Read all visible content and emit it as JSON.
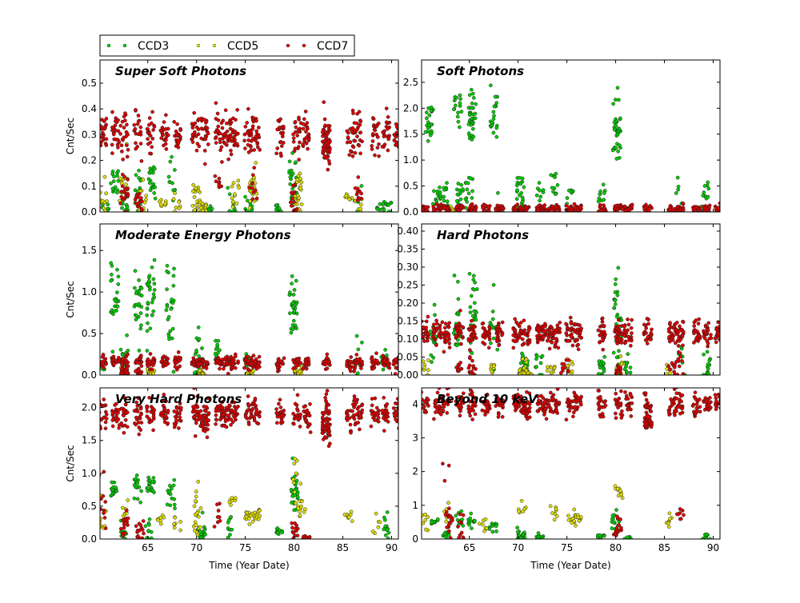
{
  "chart_data": {
    "type": "scatter",
    "legend": {
      "placement": "top-left, above plots",
      "entries": [
        "CCD3",
        "CCD5",
        "CCD7"
      ]
    },
    "colors": {
      "CCD3": "#00cc00",
      "CCD5": "#dddd00",
      "CCD7": "#dd0000"
    },
    "xlabel": "Time (Year Date)",
    "ylabel": "Cnt/Sec",
    "xlim": [
      60.1,
      90.7
    ],
    "xticks": [
      "65",
      "70",
      "75",
      "80",
      "85",
      "90"
    ],
    "xtick_values": [
      65,
      70,
      75,
      80,
      85,
      90
    ],
    "columns": [
      60.4,
      61.7,
      62.6,
      64.0,
      65.3,
      66.7,
      68.1,
      69.9,
      70.8,
      72.3,
      73.1,
      73.9,
      75.3,
      76.1,
      78.6,
      80.3,
      81.3,
      83.3,
      85.8,
      86.6,
      88.3,
      89.4,
      90.6
    ],
    "panels": [
      {
        "title": "Super Soft Photons",
        "ylim": [
          0,
          0.59
        ],
        "yticks": [
          "0.0",
          "0.1",
          "0.2",
          "0.3",
          "0.4",
          "0.5"
        ],
        "ytick_values": [
          0,
          0.1,
          0.2,
          0.3,
          0.4,
          0.5
        ],
        "CCD7_base": [
          0.3,
          0.04,
          22
        ],
        "CCD7_extra": [
          [
            83.3,
            0.25,
            0.03,
            45
          ],
          [
            62.6,
            0.07,
            0.04,
            20
          ],
          [
            64.0,
            0.04,
            0.03,
            15
          ],
          [
            72.2,
            0.12,
            0.02,
            8
          ],
          [
            75.8,
            0.1,
            0.03,
            10
          ],
          [
            80.0,
            0.04,
            0.03,
            15
          ],
          [
            86.6,
            0.08,
            0.03,
            10
          ]
        ],
        "CCD3": [
          [
            60.6,
            0.02,
            0.02,
            8
          ],
          [
            61.6,
            0.12,
            0.03,
            15
          ],
          [
            62.6,
            0.03,
            0.03,
            15
          ],
          [
            64.1,
            0.1,
            0.04,
            15
          ],
          [
            65.4,
            0.12,
            0.03,
            20
          ],
          [
            67.4,
            0.12,
            0.05,
            10
          ],
          [
            71.2,
            0.01,
            0.01,
            15
          ],
          [
            73.6,
            0.03,
            0.03,
            8
          ],
          [
            75.3,
            0.02,
            0.02,
            10
          ],
          [
            78.5,
            0.01,
            0.01,
            10
          ],
          [
            79.9,
            0.12,
            0.05,
            25
          ],
          [
            86.6,
            0.05,
            0.03,
            8
          ],
          [
            88.9,
            0.02,
            0.01,
            10
          ],
          [
            89.6,
            0.02,
            0.02,
            10
          ]
        ],
        "CCD5": [
          [
            60.4,
            0.05,
            0.04,
            12
          ],
          [
            62.5,
            0.12,
            0.05,
            12
          ],
          [
            64.5,
            0.05,
            0.04,
            10
          ],
          [
            66.5,
            0.04,
            0.01,
            8
          ],
          [
            68.0,
            0.02,
            0.02,
            8
          ],
          [
            70.0,
            0.06,
            0.04,
            20
          ],
          [
            70.8,
            0.01,
            0.01,
            20
          ],
          [
            74.0,
            0.07,
            0.04,
            12
          ],
          [
            75.8,
            0.08,
            0.04,
            20
          ],
          [
            80.4,
            0.08,
            0.04,
            25
          ],
          [
            85.6,
            0.06,
            0.01,
            8
          ],
          [
            86.6,
            0.02,
            0.02,
            8
          ]
        ]
      },
      {
        "title": "Soft Photons",
        "ylim": [
          0,
          2.93
        ],
        "yticks": [
          "0.0",
          "0.5",
          "1.0",
          "1.5",
          "2.0",
          "2.5"
        ],
        "ytick_values": [
          0,
          0.5,
          1,
          1.5,
          2,
          2.5
        ],
        "CCD7_base": [
          0.06,
          0.04,
          18
        ],
        "CCD7_extra": [],
        "CCD3": [
          [
            60.9,
            1.75,
            0.2,
            25
          ],
          [
            61.6,
            0.3,
            0.15,
            10
          ],
          [
            62.4,
            0.2,
            0.2,
            15
          ],
          [
            63.8,
            1.9,
            0.2,
            15
          ],
          [
            64.0,
            0.25,
            0.2,
            15
          ],
          [
            65.3,
            1.8,
            0.25,
            35
          ],
          [
            65.0,
            0.35,
            0.25,
            15
          ],
          [
            67.5,
            1.8,
            0.3,
            20
          ],
          [
            68.1,
            0.3,
            0.2,
            6
          ],
          [
            70.2,
            0.3,
            0.25,
            25
          ],
          [
            72.2,
            0.4,
            0.1,
            8
          ],
          [
            73.7,
            0.45,
            0.15,
            10
          ],
          [
            75.3,
            0.2,
            0.2,
            8
          ],
          [
            78.6,
            0.3,
            0.1,
            10
          ],
          [
            80.1,
            1.6,
            0.35,
            35
          ],
          [
            86.4,
            0.5,
            0.15,
            5
          ],
          [
            89.2,
            0.25,
            0.15,
            15
          ]
        ],
        "CCD5": [
          [
            63.0,
            0.05,
            0.03,
            10
          ],
          [
            70.5,
            0.05,
            0.03,
            10
          ],
          [
            75.5,
            0.05,
            0.03,
            10
          ]
        ]
      },
      {
        "title": "Moderate Energy Photons",
        "ylim": [
          0,
          1.82
        ],
        "yticks": [
          "0.0",
          "0.5",
          "1.0",
          "1.5"
        ],
        "ytick_values": [
          0,
          0.5,
          1,
          1.5
        ],
        "CCD7_base": [
          0.15,
          0.04,
          20
        ],
        "CCD7_extra": [
          [
            62.6,
            0.05,
            0.05,
            15
          ],
          [
            64.1,
            0.03,
            0.03,
            10
          ]
        ],
        "CCD3": [
          [
            60.4,
            0.1,
            0.05,
            8
          ],
          [
            61.6,
            0.9,
            0.25,
            25
          ],
          [
            62.6,
            0.15,
            0.15,
            15
          ],
          [
            64.0,
            0.8,
            0.25,
            25
          ],
          [
            65.3,
            0.9,
            0.25,
            30
          ],
          [
            67.3,
            0.85,
            0.35,
            25
          ],
          [
            70.2,
            0.2,
            0.15,
            20
          ],
          [
            72.3,
            0.3,
            0.15,
            12
          ],
          [
            75.3,
            0.1,
            0.1,
            8
          ],
          [
            79.9,
            0.8,
            0.2,
            30
          ],
          [
            86.6,
            0.2,
            0.15,
            8
          ],
          [
            89.3,
            0.15,
            0.1,
            10
          ]
        ],
        "CCD5": [
          [
            62.6,
            0.05,
            0.05,
            10
          ],
          [
            65.3,
            0.03,
            0.03,
            10
          ],
          [
            70.5,
            0.02,
            0.02,
            15
          ],
          [
            75.5,
            0.03,
            0.03,
            10
          ],
          [
            80.4,
            0.05,
            0.04,
            15
          ]
        ]
      },
      {
        "title": "Hard Photons",
        "ylim": [
          0,
          0.42
        ],
        "yticks": [
          "0.00",
          "0.05",
          "0.10",
          "0.15",
          "0.20",
          "0.25",
          "0.30",
          "0.35",
          "0.40"
        ],
        "ytick_values": [
          0,
          0.05,
          0.1,
          0.15,
          0.2,
          0.25,
          0.3,
          0.35,
          0.4
        ],
        "CCD7_base": [
          0.115,
          0.018,
          25
        ],
        "CCD7_extra": [
          [
            64.0,
            0.02,
            0.01,
            10
          ],
          [
            65.3,
            0.03,
            0.02,
            12
          ],
          [
            74.8,
            0.03,
            0.02,
            10
          ],
          [
            80.3,
            0.01,
            0.01,
            10
          ],
          [
            85.8,
            0.02,
            0.01,
            8
          ],
          [
            86.6,
            0.03,
            0.02,
            10
          ]
        ],
        "CCD3": [
          [
            61.4,
            0.13,
            0.05,
            20
          ],
          [
            63.7,
            0.14,
            0.05,
            20
          ],
          [
            65.4,
            0.16,
            0.07,
            30
          ],
          [
            67.5,
            0.14,
            0.06,
            15
          ],
          [
            70.6,
            0.03,
            0.02,
            20
          ],
          [
            72.1,
            0.04,
            0.03,
            10
          ],
          [
            78.5,
            0.02,
            0.02,
            15
          ],
          [
            80.2,
            0.14,
            0.06,
            35
          ],
          [
            81.3,
            0.02,
            0.02,
            10
          ],
          [
            86.8,
            0.05,
            0.03,
            8
          ],
          [
            89.3,
            0.03,
            0.02,
            15
          ]
        ],
        "CCD5": [
          [
            60.4,
            0.02,
            0.01,
            8
          ],
          [
            67.4,
            0.015,
            0.01,
            8
          ],
          [
            70.5,
            0.02,
            0.02,
            15
          ],
          [
            71.0,
            0.005,
            0.005,
            10
          ],
          [
            73.4,
            0.02,
            0.01,
            10
          ],
          [
            75.3,
            0.02,
            0.01,
            10
          ],
          [
            80.4,
            0.025,
            0.02,
            12
          ],
          [
            85.6,
            0.015,
            0.01,
            8
          ]
        ]
      },
      {
        "title": "Very Hard Photons",
        "ylim": [
          0,
          2.3
        ],
        "yticks": [
          "0.0",
          "0.5",
          "1.0",
          "1.5",
          "2.0"
        ],
        "ytick_values": [
          0,
          0.5,
          1,
          1.5,
          2
        ],
        "CCD7_base": [
          1.9,
          0.12,
          22
        ],
        "CCD7_extra": [
          [
            70.9,
            1.78,
            0.1,
            20
          ],
          [
            83.3,
            1.65,
            0.1,
            40
          ],
          [
            60.4,
            0.5,
            0.3,
            10
          ],
          [
            62.6,
            0.2,
            0.1,
            15
          ],
          [
            64.2,
            0.15,
            0.1,
            15
          ],
          [
            72.2,
            0.35,
            0.1,
            8
          ],
          [
            80.1,
            0.1,
            0.07,
            12
          ],
          [
            81.3,
            0.02,
            0.02,
            10
          ]
        ],
        "CCD3": [
          [
            61.6,
            0.75,
            0.08,
            15
          ],
          [
            62.6,
            0.1,
            0.08,
            10
          ],
          [
            64.0,
            0.8,
            0.08,
            15
          ],
          [
            65.3,
            0.8,
            0.1,
            20
          ],
          [
            65.0,
            0.15,
            0.1,
            10
          ],
          [
            67.4,
            0.65,
            0.1,
            15
          ],
          [
            70.5,
            0.1,
            0.08,
            20
          ],
          [
            73.6,
            0.15,
            0.1,
            10
          ],
          [
            78.5,
            0.12,
            0.03,
            10
          ],
          [
            80.0,
            0.75,
            0.2,
            25
          ],
          [
            89.4,
            0.15,
            0.1,
            12
          ]
        ],
        "CCD5": [
          [
            60.4,
            0.3,
            0.15,
            10
          ],
          [
            62.8,
            0.35,
            0.15,
            10
          ],
          [
            66.4,
            0.3,
            0.05,
            8
          ],
          [
            68.0,
            0.25,
            0.05,
            8
          ],
          [
            70.1,
            0.35,
            0.25,
            20
          ],
          [
            73.6,
            0.6,
            0.05,
            8
          ],
          [
            75.4,
            0.35,
            0.08,
            15
          ],
          [
            76.1,
            0.35,
            0.05,
            12
          ],
          [
            80.3,
            0.9,
            0.2,
            12
          ],
          [
            80.8,
            0.45,
            0.1,
            10
          ],
          [
            85.6,
            0.35,
            0.05,
            8
          ],
          [
            88.5,
            0.25,
            0.1,
            6
          ]
        ]
      },
      {
        "title": "Beyond 10 keV",
        "ylim": [
          0,
          4.48
        ],
        "yticks": [
          "0",
          "1",
          "2",
          "3",
          "4"
        ],
        "ytick_values": [
          0,
          1,
          2,
          3,
          4
        ],
        "CCD7_base": [
          4.0,
          0.18,
          20
        ],
        "CCD7_extra": [
          [
            70.8,
            3.75,
            0.12,
            20
          ],
          [
            83.3,
            3.45,
            0.1,
            40
          ],
          [
            62.6,
            1.2,
            0.6,
            8
          ],
          [
            62.9,
            0.3,
            0.3,
            12
          ],
          [
            64.2,
            0.3,
            0.3,
            10
          ],
          [
            80.2,
            0.3,
            0.2,
            15
          ],
          [
            86.6,
            0.7,
            0.1,
            8
          ]
        ],
        "CCD3": [
          [
            61.5,
            0.5,
            0.05,
            10
          ],
          [
            62.6,
            0.1,
            0.1,
            10
          ],
          [
            64.0,
            0.6,
            0.1,
            10
          ],
          [
            65.3,
            0.5,
            0.1,
            12
          ],
          [
            67.4,
            0.4,
            0.08,
            10
          ],
          [
            70.3,
            0.1,
            0.1,
            20
          ],
          [
            72.2,
            0.05,
            0.05,
            10
          ],
          [
            78.5,
            0.05,
            0.05,
            10
          ],
          [
            80.0,
            0.5,
            0.2,
            15
          ],
          [
            81.3,
            0.03,
            0.03,
            10
          ],
          [
            89.3,
            0.1,
            0.1,
            10
          ]
        ],
        "CCD5": [
          [
            60.4,
            0.5,
            0.2,
            8
          ],
          [
            62.8,
            0.8,
            0.2,
            8
          ],
          [
            66.4,
            0.4,
            0.1,
            8
          ],
          [
            70.4,
            0.9,
            0.1,
            8
          ],
          [
            73.7,
            0.85,
            0.1,
            8
          ],
          [
            75.5,
            0.6,
            0.1,
            10
          ],
          [
            76.1,
            0.6,
            0.1,
            10
          ],
          [
            80.3,
            1.4,
            0.2,
            10
          ],
          [
            85.6,
            0.5,
            0.1,
            8
          ]
        ]
      }
    ]
  }
}
